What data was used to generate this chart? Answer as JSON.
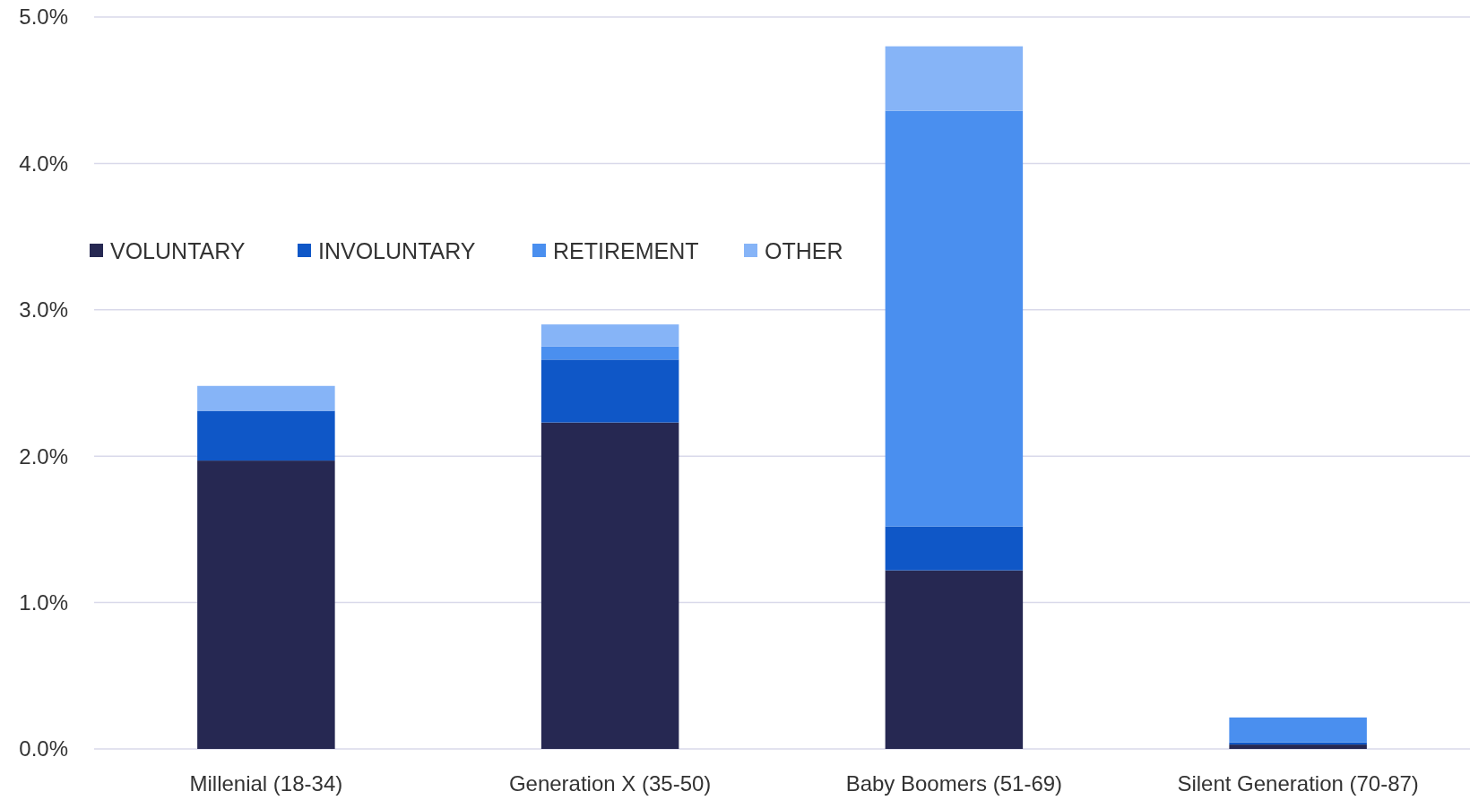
{
  "chart_data": {
    "type": "bar",
    "stacked": true,
    "categories": [
      "Millenial (18-34)",
      "Generation X (35-50)",
      "Baby Boomers (51-69)",
      "Silent Generation (70-87)"
    ],
    "series": [
      {
        "name": "VOLUNTARY",
        "color": "#262852",
        "values": [
          1.97,
          2.23,
          1.22,
          0.03
        ]
      },
      {
        "name": "INVOLUNTARY",
        "color": "#0f57c7",
        "values": [
          0.34,
          0.43,
          0.3,
          0.015
        ]
      },
      {
        "name": "RETIREMENT",
        "color": "#4a8fef",
        "values": [
          0,
          0.09,
          2.84,
          0.17
        ]
      },
      {
        "name": "OTHER",
        "color": "#86b4f7",
        "values": [
          0.17,
          0.15,
          0.44,
          0
        ]
      }
    ],
    "ylim": [
      0,
      5
    ],
    "yticks": [
      {
        "value": 0,
        "label": "0.0%"
      },
      {
        "value": 1,
        "label": "1.0%"
      },
      {
        "value": 2,
        "label": "2.0%"
      },
      {
        "value": 3,
        "label": "3.0%"
      },
      {
        "value": 4,
        "label": "4.0%"
      },
      {
        "value": 5,
        "label": "5.0%"
      }
    ],
    "grid": "y",
    "legend": "top left"
  }
}
